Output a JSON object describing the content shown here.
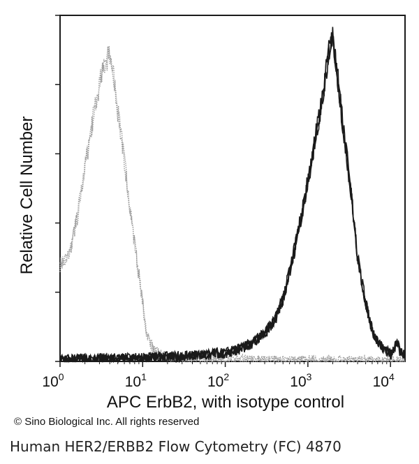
{
  "chart_data": {
    "type": "line",
    "title": "",
    "xlabel": "APC ErbB2, with isotype control",
    "ylabel": "Relative Cell Number",
    "x_scale": "log",
    "xlim": [
      1,
      15000
    ],
    "ylim": [
      0,
      1.0
    ],
    "x_ticks": [
      {
        "value": 1,
        "base": "10",
        "exp": "0"
      },
      {
        "value": 10,
        "base": "10",
        "exp": "1"
      },
      {
        "value": 100,
        "base": "10",
        "exp": "2"
      },
      {
        "value": 1000,
        "base": "10",
        "exp": "3"
      },
      {
        "value": 10000,
        "base": "10",
        "exp": "4"
      }
    ],
    "grid": false,
    "legend": "none",
    "series": [
      {
        "color": "#9a9a9a",
        "style": "dotted",
        "x": [
          1.0,
          1.3,
          1.6,
          2.0,
          2.5,
          3.0,
          3.5,
          4.0,
          4.5,
          5.0,
          6.0,
          7.0,
          8.0,
          9.0,
          10.0,
          11.0,
          12.5,
          14.0,
          16.0,
          20.0,
          30.0,
          50.0,
          100.0,
          300.0,
          1000.0,
          10000.0,
          15000.0
        ],
        "y": [
          0.28,
          0.31,
          0.41,
          0.56,
          0.7,
          0.8,
          0.86,
          0.89,
          0.82,
          0.72,
          0.58,
          0.45,
          0.34,
          0.25,
          0.17,
          0.09,
          0.05,
          0.03,
          0.02,
          0.012,
          0.008,
          0.005,
          0.004,
          0.003,
          0.002,
          0.001,
          0.001
        ]
      },
      {
        "color": "#1a1a1a",
        "style": "solid",
        "x": [
          1.0,
          3.0,
          10.0,
          30.0,
          60.0,
          100.0,
          150.0,
          200.0,
          300.0,
          400.0,
          500.0,
          600.0,
          700.0,
          800.0,
          1000.0,
          1200.0,
          1500.0,
          1800.0,
          2000.0,
          2300.0,
          2600.0,
          3000.0,
          3500.0,
          4000.0,
          5000.0,
          6000.0,
          7000.0,
          8000.0,
          9000.0,
          10000.0,
          11000.0,
          12000.0,
          13000.0,
          15000.0
        ],
        "y": [
          0.005,
          0.008,
          0.01,
          0.015,
          0.02,
          0.025,
          0.035,
          0.05,
          0.08,
          0.12,
          0.18,
          0.26,
          0.33,
          0.4,
          0.52,
          0.63,
          0.76,
          0.9,
          0.94,
          0.82,
          0.7,
          0.58,
          0.44,
          0.3,
          0.17,
          0.09,
          0.06,
          0.04,
          0.03,
          0.02,
          0.03,
          0.06,
          0.03,
          0.02
        ]
      }
    ]
  },
  "footer": {
    "copyright": "© Sino Biological Inc. All rights reserved",
    "caption": "Human HER2/ERBB2 Flow Cytometry (FC) 4870"
  }
}
